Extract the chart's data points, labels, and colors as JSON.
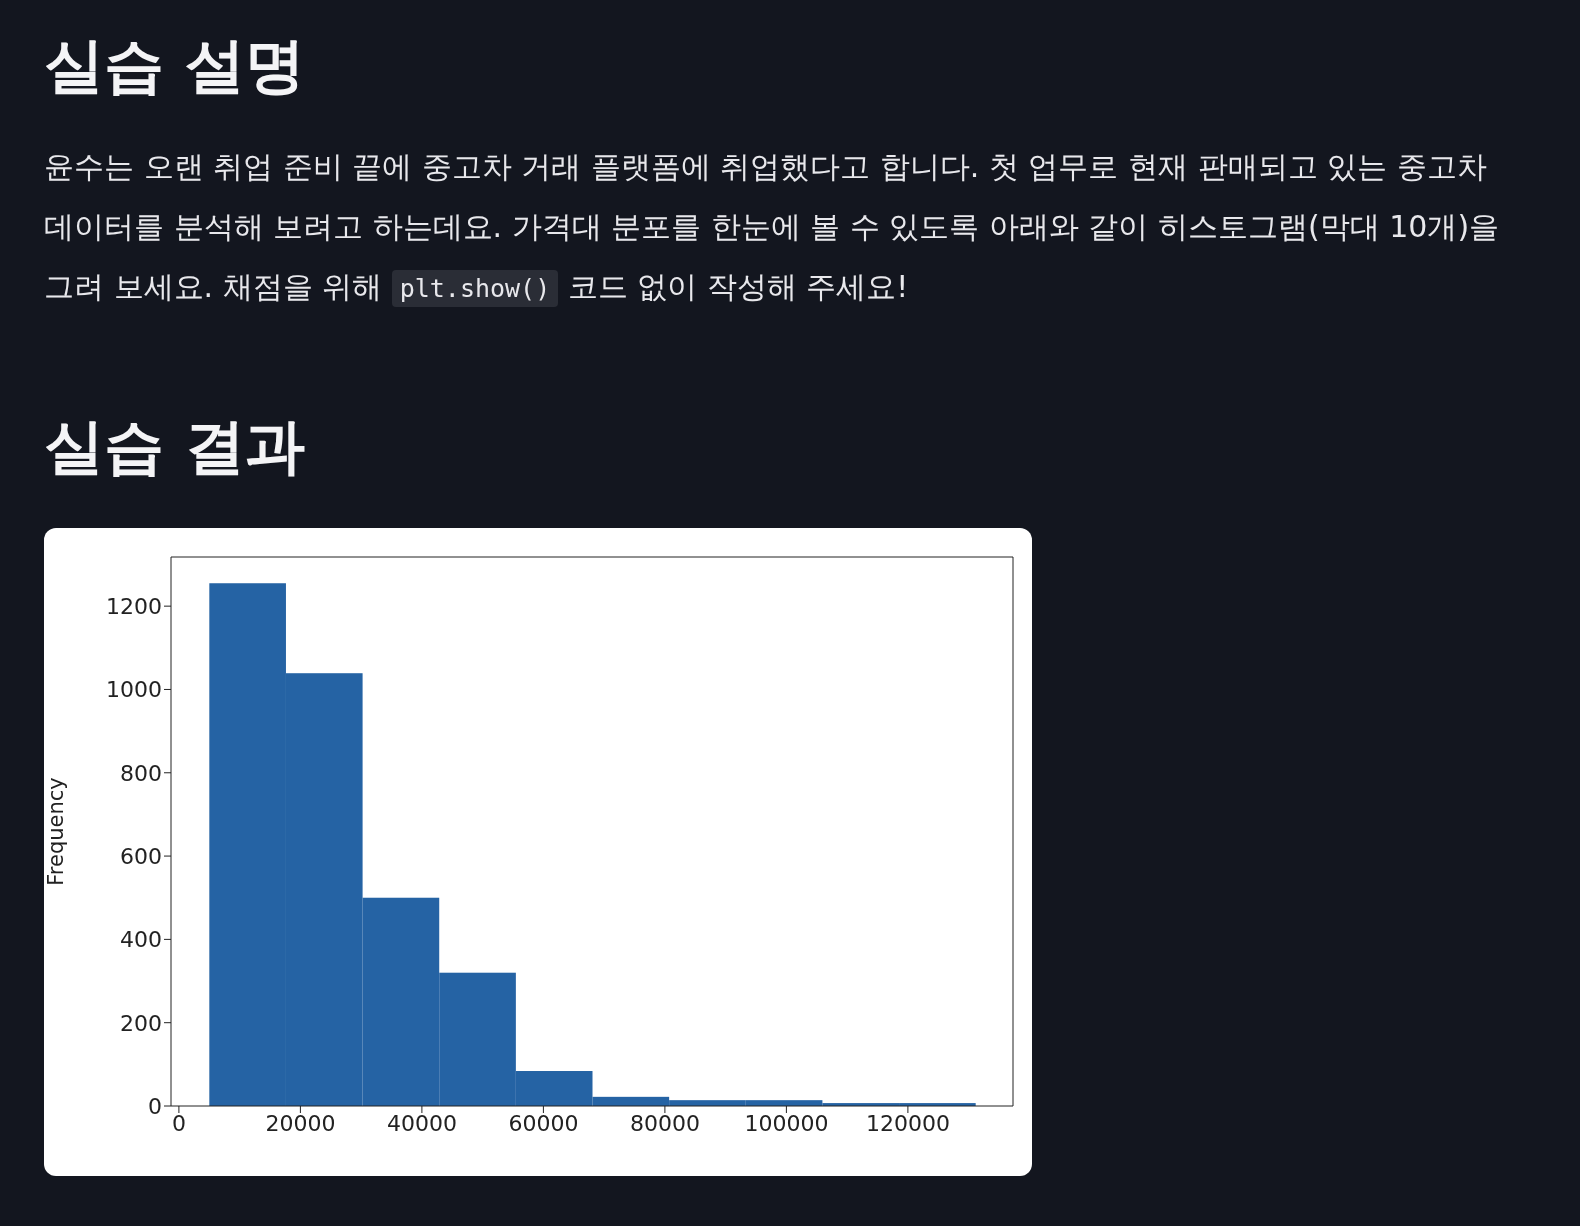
{
  "chart_data": {
    "type": "histogram",
    "title": "실습 설명",
    "subtitle": "실습 결과",
    "annotations": [
      "윤수는 오랜 취업 준비 끝에 중고차 거래 플랫폼에 취업했다고 합니다. 첫 업무로 현재 판매되고 있는 중고차 데이터를 분석해 보려고 하는데요. 가격대 분포를 한눈에 볼 수 있도록 아래와 같이 히스토그램(막대 10개)을 그려 보세요. 채점을 위해 ",
      "plt.show()",
      " 코드 없이 작성해 주세요!"
    ],
    "ylabel": "Frequency",
    "bins": [
      5000,
      17600,
      30200,
      42800,
      55400,
      68000,
      80600,
      93200,
      105800,
      118400,
      131000
    ],
    "values": [
      1255,
      1039,
      500,
      320,
      84,
      22,
      14,
      14,
      7,
      7
    ],
    "color": "#2563a4",
    "xlim": [
      -1300,
      137300
    ],
    "xticks": [
      0,
      20000,
      40000,
      60000,
      80000,
      100000,
      120000
    ],
    "ylim": [
      0,
      1318
    ],
    "yticks": [
      0,
      200,
      400,
      600,
      800,
      1000,
      1200
    ],
    "grid": false,
    "legend": false
  }
}
